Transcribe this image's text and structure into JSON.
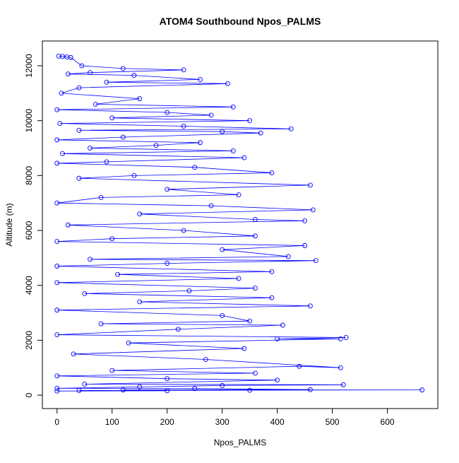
{
  "chart_data": {
    "type": "line",
    "title": "ATOM4 Southbound Npos_PALMS",
    "x_label": "Npos_PALMS",
    "y_label": "Altitude (m)",
    "x": [
      3,
      10,
      18,
      25,
      45,
      120,
      230,
      60,
      20,
      140,
      260,
      90,
      310,
      40,
      8,
      150,
      70,
      320,
      0,
      200,
      280,
      100,
      350,
      5,
      230,
      425,
      40,
      300,
      370,
      120,
      0,
      260,
      180,
      60,
      320,
      10,
      340,
      90,
      0,
      250,
      390,
      140,
      40,
      460,
      200,
      330,
      80,
      0,
      280,
      465,
      150,
      360,
      450,
      20,
      230,
      360,
      100,
      0,
      450,
      300,
      420,
      60,
      470,
      200,
      0,
      390,
      110,
      330,
      0,
      360,
      240,
      50,
      390,
      150,
      460,
      0,
      300,
      350,
      80,
      410,
      220,
      0,
      525,
      400,
      515,
      130,
      340,
      30,
      270,
      515,
      440,
      100,
      360,
      0,
      200,
      400,
      50,
      520,
      300,
      150,
      0,
      250,
      460,
      120,
      663,
      350,
      40,
      200,
      0
    ],
    "values": [
      12350,
      12340,
      12320,
      12300,
      12000,
      11900,
      11850,
      11750,
      11700,
      11650,
      11500,
      11400,
      11350,
      11200,
      11000,
      10800,
      10600,
      10500,
      10400,
      10300,
      10200,
      10100,
      10000,
      9900,
      9800,
      9700,
      9650,
      9600,
      9550,
      9400,
      9300,
      9200,
      9100,
      9000,
      8900,
      8800,
      8650,
      8500,
      8450,
      8300,
      8100,
      8000,
      7900,
      7650,
      7500,
      7300,
      7200,
      7000,
      6900,
      6750,
      6600,
      6400,
      6350,
      6200,
      6000,
      5800,
      5700,
      5600,
      5450,
      5300,
      5050,
      4950,
      4900,
      4800,
      4700,
      4500,
      4400,
      4250,
      4100,
      3900,
      3800,
      3700,
      3550,
      3400,
      3250,
      3100,
      2900,
      2700,
      2600,
      2550,
      2400,
      2200,
      2100,
      2050,
      2050,
      1900,
      1700,
      1500,
      1300,
      1000,
      1050,
      900,
      800,
      700,
      600,
      550,
      400,
      380,
      350,
      300,
      250,
      240,
      200,
      190,
      190,
      180,
      170,
      160,
      150
    ],
    "color": "#0000ff",
    "markers": true,
    "xlim": [
      -26.6,
      691.6
    ],
    "xticks": [
      0,
      100,
      200,
      300,
      400,
      500,
      600
    ],
    "ylim": [
      -489,
      12902
    ],
    "yticks": [
      0,
      2000,
      4000,
      6000,
      8000,
      10000,
      12000
    ]
  }
}
